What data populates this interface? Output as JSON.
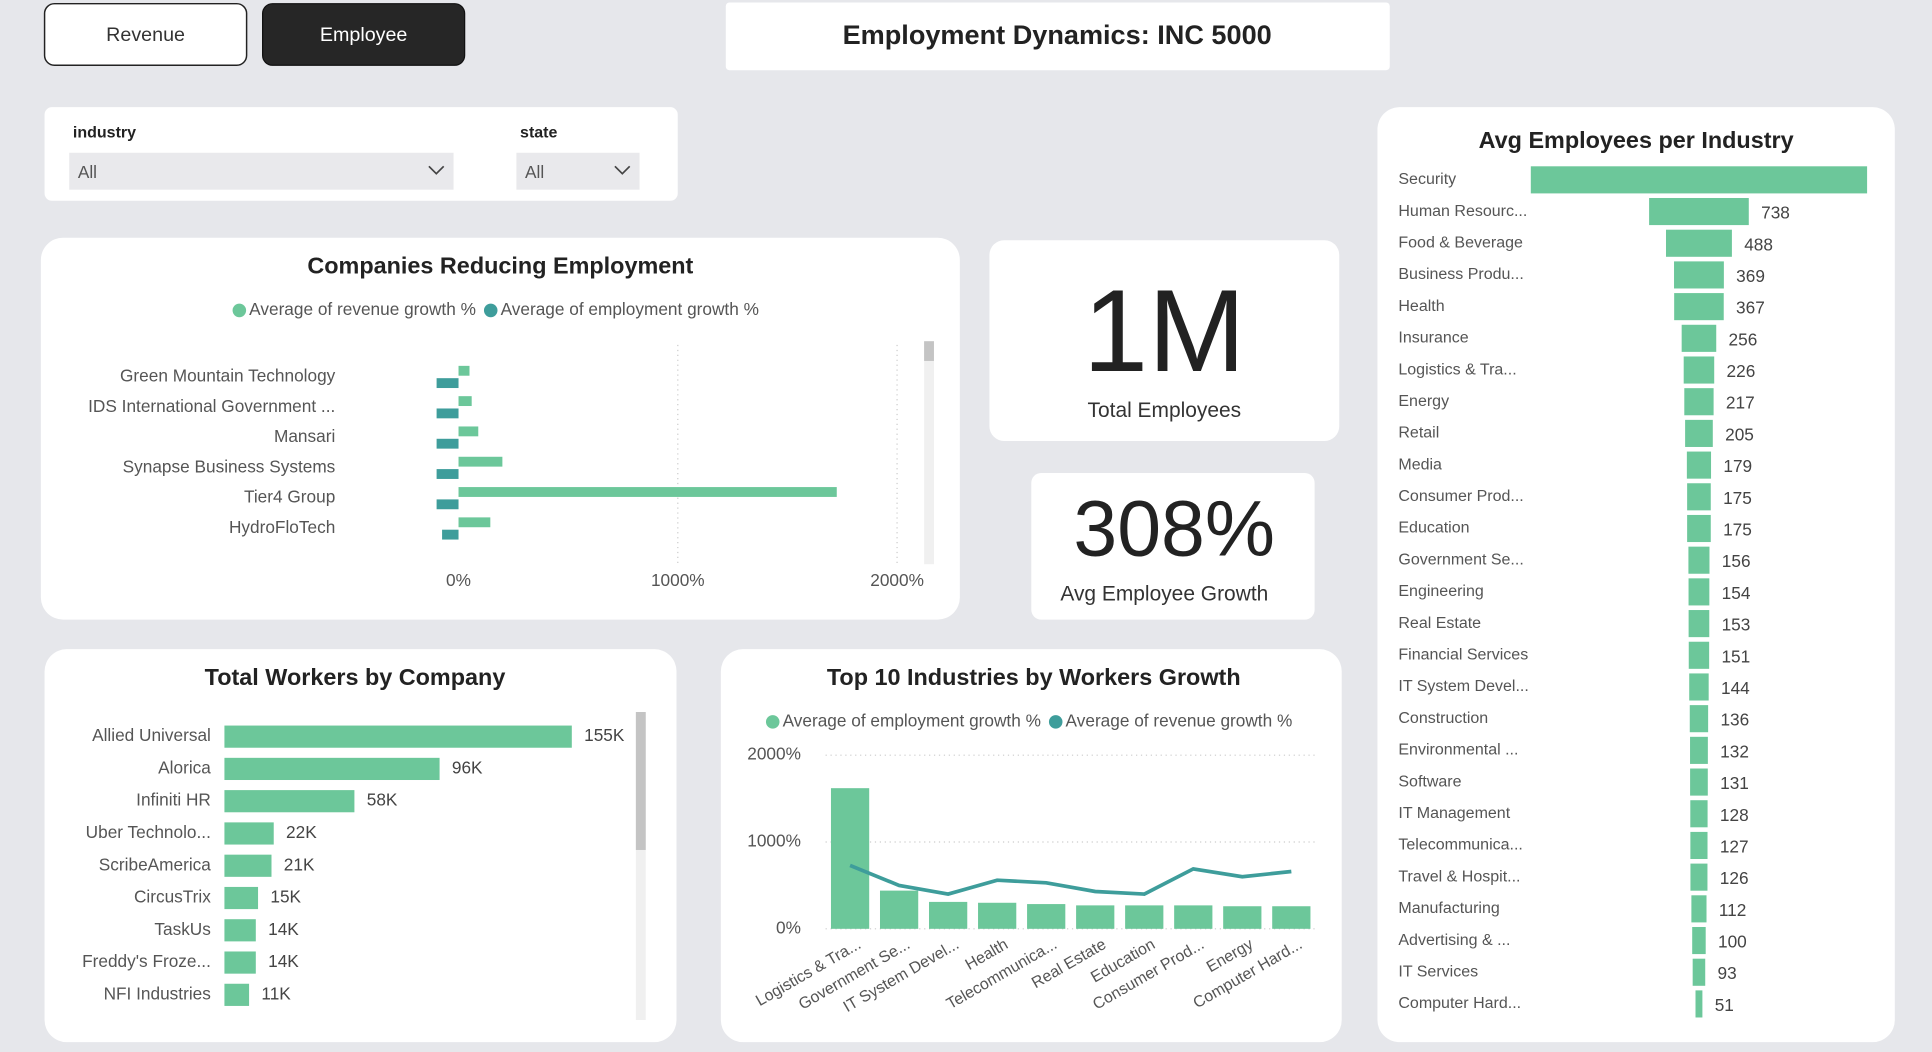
{
  "buttons": [
    "Revenue",
    "Employee"
  ],
  "header": {
    "title": "Employment Dynamics: INC 5000"
  },
  "filters": [
    {
      "label": "industry",
      "value": "All"
    },
    {
      "label": "state",
      "value": "All"
    }
  ],
  "cards": [
    {
      "value": "1M",
      "label": "Total Employees"
    },
    {
      "value": "308%",
      "label": "Avg Employee Growth"
    }
  ],
  "chart_data": [
    {
      "type": "bar",
      "orientation": "horizontal",
      "title": "Companies Reducing Employment",
      "categories": [
        "Green Mountain Technology",
        "IDS International Government ...",
        "Mansari",
        "Synapse Business Systems",
        "Tier4 Group",
        "HydroFloTech"
      ],
      "series": [
        {
          "name": "Average of revenue growth %",
          "color": "#6cc79a",
          "values": [
            50,
            60,
            90,
            200,
            1725,
            145
          ]
        },
        {
          "name": "Average of employment growth %",
          "color": "#3e9d9b",
          "values": [
            -100,
            -100,
            -100,
            -100,
            -100,
            -75
          ]
        }
      ],
      "xlim": [
        -180,
        2070
      ],
      "xticks": [
        {
          "value": 0,
          "label": "0%"
        },
        {
          "value": 1000,
          "label": "1000%"
        },
        {
          "value": 2000,
          "label": "2000%"
        }
      ],
      "grid": true
    },
    {
      "type": "bar",
      "orientation": "horizontal",
      "title": "Total Workers by Company",
      "categories": [
        "Allied Universal",
        "Alorica",
        "Infiniti HR",
        "Uber Technolo...",
        "ScribeAmerica",
        "CircusTrix",
        "TaskUs",
        "Freddy's Froze...",
        "NFI Industries"
      ],
      "values": [
        155000,
        96000,
        58000,
        22000,
        21000,
        15000,
        14000,
        14000,
        11000
      ],
      "value_labels": [
        "155K",
        "96K",
        "58K",
        "22K",
        "21K",
        "15K",
        "14K",
        "14K",
        "11K"
      ],
      "color": "#6cc79a"
    },
    {
      "type": "combo",
      "title": "Top 10 Industries by Workers Growth",
      "categories": [
        "Logistics & Tra...",
        "Government Se...",
        "IT System Devel...",
        "Health",
        "Telecommunica...",
        "Real Estate",
        "Education",
        "Consumer Prod...",
        "Energy",
        "Computer Hard..."
      ],
      "series": [
        {
          "name": "Average of employment growth %",
          "color": "#6cc79a",
          "mark": "bar",
          "values": [
            1620,
            440,
            310,
            300,
            285,
            270,
            270,
            270,
            260,
            260
          ]
        },
        {
          "name": "Average of revenue growth %",
          "color": "#3e9d9b",
          "mark": "line",
          "values": [
            730,
            500,
            400,
            560,
            530,
            430,
            400,
            690,
            600,
            660
          ]
        }
      ],
      "ylim": [
        0,
        2100
      ],
      "yticks": [
        {
          "value": 0,
          "label": "0%"
        },
        {
          "value": 1000,
          "label": "1000%"
        },
        {
          "value": 2000,
          "label": "2000%"
        }
      ],
      "grid": true
    },
    {
      "type": "funnel",
      "title": "Avg Employees per Industry",
      "categories": [
        "Security",
        "Human Resourc...",
        "Food & Beverage",
        "Business Produ...",
        "Health",
        "Insurance",
        "Logistics & Tra...",
        "Energy",
        "Retail",
        "Media",
        "Consumer Prod...",
        "Education",
        "Government Se...",
        "Engineering",
        "Real Estate",
        "Financial Services",
        "IT System Devel...",
        "Construction",
        "Environmental ...",
        "Software",
        "IT Management",
        "Telecommunica...",
        "Travel & Hospit...",
        "Manufacturing",
        "Advertising & ...",
        "IT Services",
        "Computer Hard..."
      ],
      "values": [
        2490,
        738,
        488,
        369,
        367,
        256,
        226,
        217,
        205,
        179,
        175,
        175,
        156,
        154,
        153,
        151,
        144,
        136,
        132,
        131,
        128,
        127,
        126,
        112,
        100,
        93,
        51
      ],
      "color": "#6cc79a"
    }
  ]
}
